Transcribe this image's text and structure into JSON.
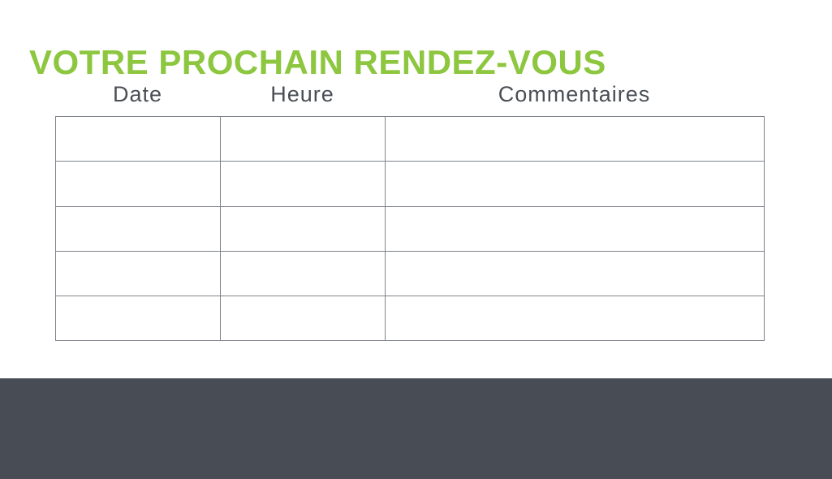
{
  "page": {
    "title": "VOTRE PROCHAIN RENDEZ-VOUS"
  },
  "table": {
    "columns": [
      {
        "label": "Date"
      },
      {
        "label": "Heure"
      },
      {
        "label": "Commentaires"
      }
    ],
    "rows": [
      {
        "date": "",
        "heure": "",
        "commentaires": ""
      },
      {
        "date": "",
        "heure": "",
        "commentaires": ""
      },
      {
        "date": "",
        "heure": "",
        "commentaires": ""
      },
      {
        "date": "",
        "heure": "",
        "commentaires": ""
      },
      {
        "date": "",
        "heure": "",
        "commentaires": ""
      }
    ]
  },
  "colors": {
    "title_green": "#8DC63F",
    "heading_text": "#4A4F55",
    "table_border": "#7F838A",
    "footer_bg": "#474C55",
    "page_bg": "#FFFFFF"
  }
}
